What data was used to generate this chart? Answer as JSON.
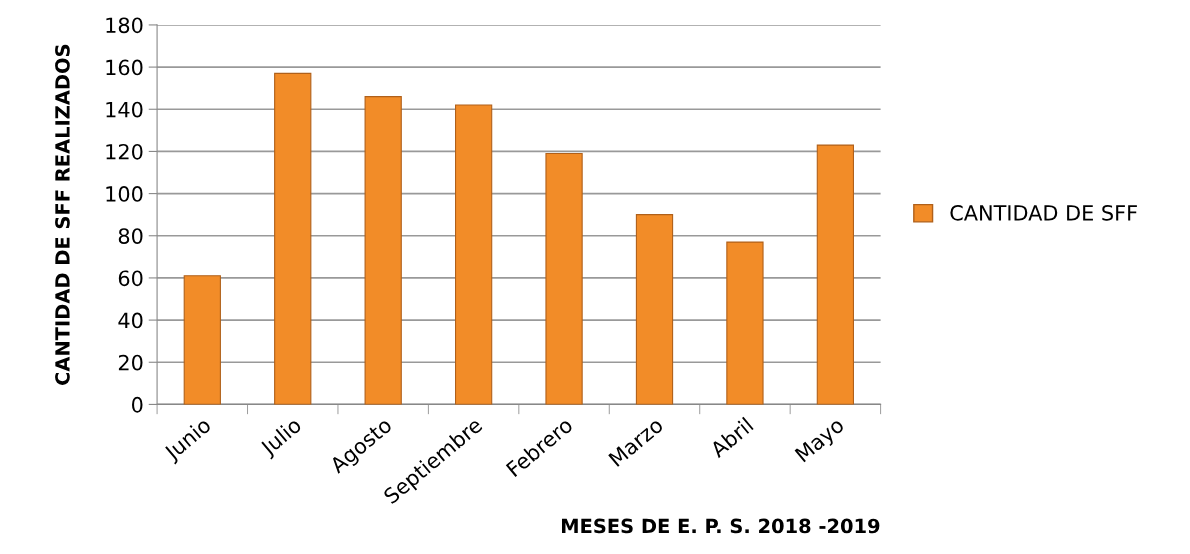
{
  "chart_data": {
    "type": "bar",
    "xlabel": "MESES DE E. P. S. 2018 -2019",
    "ylabel": "CANTIDAD DE SFF REALIZADOS",
    "categories": [
      "Junio",
      "Julio",
      "Agosto",
      "Septiembre",
      "Febrero",
      "Marzo",
      "Abril",
      "Mayo"
    ],
    "series": [
      {
        "name": "CANTIDAD DE SFF",
        "color": "#f28c28",
        "values": [
          61,
          157,
          146,
          142,
          119,
          90,
          77,
          123
        ]
      }
    ],
    "ylim": [
      0,
      180
    ],
    "yticks": [
      0,
      20,
      40,
      60,
      80,
      100,
      120,
      140,
      160,
      180
    ],
    "grid": "y",
    "legend": "right"
  }
}
